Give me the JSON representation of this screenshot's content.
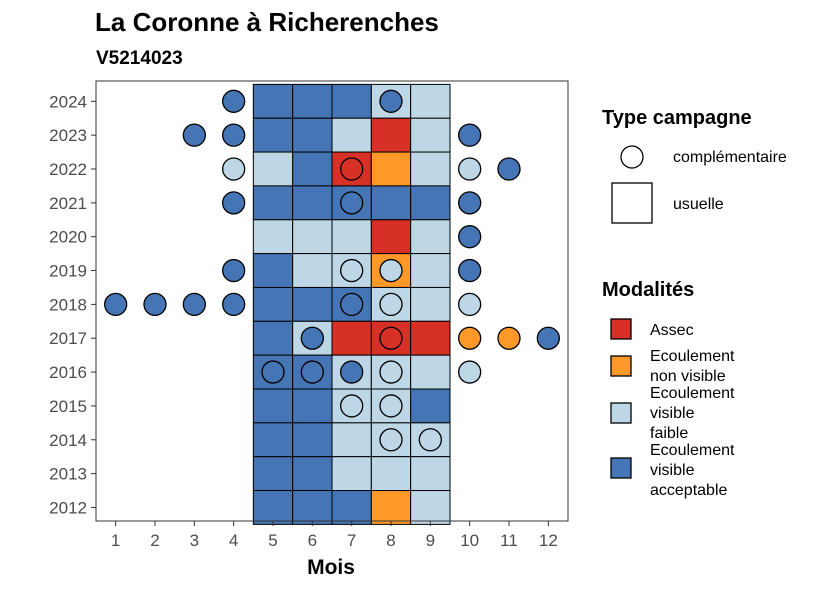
{
  "chart_data": {
    "type": "heatmap",
    "title": "La Coronne à Richerenches",
    "subtitle": "V5214023",
    "xlabel": "Mois",
    "ylabel": "",
    "x_ticks": [
      "1",
      "2",
      "3",
      "4",
      "5",
      "6",
      "7",
      "8",
      "9",
      "10",
      "11",
      "12"
    ],
    "y_ticks": [
      "2012",
      "2013",
      "2014",
      "2015",
      "2016",
      "2017",
      "2018",
      "2019",
      "2020",
      "2021",
      "2022",
      "2023",
      "2024"
    ],
    "xlim": [
      0.5,
      12.5
    ],
    "ylim": [
      2011.6,
      2024.6
    ],
    "grid": false,
    "legend_placement": "right",
    "colors": {
      "assec": "#d73027",
      "ecoulement_non_visible": "#fe9929",
      "ecoulement_visible_faible": "#bdd7e7",
      "ecoulement_visible_acceptable": "#4575b4"
    },
    "modality_legend": {
      "title": "Modalités",
      "entries": [
        {
          "key": "assec",
          "lines": [
            "Assec"
          ]
        },
        {
          "key": "ecoulement_non_visible",
          "lines": [
            "Ecoulement",
            "non visible"
          ]
        },
        {
          "key": "ecoulement_visible_faible",
          "lines": [
            "Ecoulement",
            "visible",
            "faible"
          ]
        },
        {
          "key": "ecoulement_visible_acceptable",
          "lines": [
            "Ecoulement",
            "visible",
            "acceptable"
          ]
        }
      ]
    },
    "campaign_legend": {
      "title": "Type campagne",
      "entries": [
        {
          "shape": "circle",
          "label": "complémentaire"
        },
        {
          "shape": "square",
          "label": "usuelle"
        }
      ]
    },
    "usuelle": [
      {
        "year": 2024,
        "months": {
          "5": "ecoulement_visible_acceptable",
          "6": "ecoulement_visible_acceptable",
          "7": "ecoulement_visible_acceptable",
          "8": "ecoulement_visible_faible",
          "9": "ecoulement_visible_faible"
        }
      },
      {
        "year": 2023,
        "months": {
          "5": "ecoulement_visible_acceptable",
          "6": "ecoulement_visible_acceptable",
          "7": "ecoulement_visible_faible",
          "8": "assec",
          "9": "ecoulement_visible_faible"
        }
      },
      {
        "year": 2022,
        "months": {
          "5": "ecoulement_visible_faible",
          "6": "ecoulement_visible_acceptable",
          "7": "assec",
          "8": "ecoulement_non_visible",
          "9": "ecoulement_visible_faible"
        }
      },
      {
        "year": 2021,
        "months": {
          "5": "ecoulement_visible_acceptable",
          "6": "ecoulement_visible_acceptable",
          "7": "ecoulement_visible_acceptable",
          "8": "ecoulement_visible_acceptable",
          "9": "ecoulement_visible_acceptable"
        }
      },
      {
        "year": 2020,
        "months": {
          "5": "ecoulement_visible_faible",
          "6": "ecoulement_visible_faible",
          "7": "ecoulement_visible_faible",
          "8": "assec",
          "9": "ecoulement_visible_faible"
        }
      },
      {
        "year": 2019,
        "months": {
          "5": "ecoulement_visible_acceptable",
          "6": "ecoulement_visible_faible",
          "7": "ecoulement_visible_faible",
          "8": "ecoulement_non_visible",
          "9": "ecoulement_visible_faible"
        }
      },
      {
        "year": 2018,
        "months": {
          "5": "ecoulement_visible_acceptable",
          "6": "ecoulement_visible_acceptable",
          "7": "ecoulement_visible_acceptable",
          "8": "ecoulement_visible_faible",
          "9": "ecoulement_visible_faible"
        }
      },
      {
        "year": 2017,
        "months": {
          "5": "ecoulement_visible_acceptable",
          "6": "ecoulement_visible_faible",
          "7": "assec",
          "8": "assec",
          "9": "assec"
        }
      },
      {
        "year": 2016,
        "months": {
          "5": "ecoulement_visible_acceptable",
          "6": "ecoulement_visible_acceptable",
          "7": "ecoulement_visible_faible",
          "8": "ecoulement_visible_faible",
          "9": "ecoulement_visible_faible"
        }
      },
      {
        "year": 2015,
        "months": {
          "5": "ecoulement_visible_acceptable",
          "6": "ecoulement_visible_acceptable",
          "7": "ecoulement_visible_faible",
          "8": "ecoulement_visible_faible",
          "9": "ecoulement_visible_acceptable"
        }
      },
      {
        "year": 2014,
        "months": {
          "5": "ecoulement_visible_acceptable",
          "6": "ecoulement_visible_acceptable",
          "7": "ecoulement_visible_faible",
          "8": "ecoulement_visible_faible",
          "9": "ecoulement_visible_faible"
        }
      },
      {
        "year": 2013,
        "months": {
          "5": "ecoulement_visible_acceptable",
          "6": "ecoulement_visible_acceptable",
          "7": "ecoulement_visible_faible",
          "8": "ecoulement_visible_faible",
          "9": "ecoulement_visible_faible"
        }
      },
      {
        "year": 2012,
        "months": {
          "5": "ecoulement_visible_acceptable",
          "6": "ecoulement_visible_acceptable",
          "7": "ecoulement_visible_acceptable",
          "8": "ecoulement_non_visible",
          "9": "ecoulement_visible_faible"
        }
      }
    ],
    "complementaire": [
      {
        "year": 2024,
        "month": 4,
        "modality": "ecoulement_visible_acceptable"
      },
      {
        "year": 2024,
        "month": 8,
        "modality": "ecoulement_visible_acceptable"
      },
      {
        "year": 2023,
        "month": 3,
        "modality": "ecoulement_visible_acceptable"
      },
      {
        "year": 2023,
        "month": 4,
        "modality": "ecoulement_visible_acceptable"
      },
      {
        "year": 2023,
        "month": 10,
        "modality": "ecoulement_visible_acceptable"
      },
      {
        "year": 2022,
        "month": 4,
        "modality": "ecoulement_visible_faible"
      },
      {
        "year": 2022,
        "month": 7,
        "modality": "assec"
      },
      {
        "year": 2022,
        "month": 10,
        "modality": "ecoulement_visible_faible"
      },
      {
        "year": 2022,
        "month": 11,
        "modality": "ecoulement_visible_acceptable"
      },
      {
        "year": 2021,
        "month": 4,
        "modality": "ecoulement_visible_acceptable"
      },
      {
        "year": 2021,
        "month": 7,
        "modality": "ecoulement_visible_acceptable"
      },
      {
        "year": 2021,
        "month": 10,
        "modality": "ecoulement_visible_acceptable"
      },
      {
        "year": 2020,
        "month": 10,
        "modality": "ecoulement_visible_acceptable"
      },
      {
        "year": 2019,
        "month": 4,
        "modality": "ecoulement_visible_acceptable"
      },
      {
        "year": 2019,
        "month": 7,
        "modality": "ecoulement_visible_faible"
      },
      {
        "year": 2019,
        "month": 8,
        "modality": "ecoulement_visible_faible"
      },
      {
        "year": 2019,
        "month": 10,
        "modality": "ecoulement_visible_acceptable"
      },
      {
        "year": 2018,
        "month": 1,
        "modality": "ecoulement_visible_acceptable"
      },
      {
        "year": 2018,
        "month": 2,
        "modality": "ecoulement_visible_acceptable"
      },
      {
        "year": 2018,
        "month": 3,
        "modality": "ecoulement_visible_acceptable"
      },
      {
        "year": 2018,
        "month": 4,
        "modality": "ecoulement_visible_acceptable"
      },
      {
        "year": 2018,
        "month": 7,
        "modality": "ecoulement_visible_acceptable"
      },
      {
        "year": 2018,
        "month": 8,
        "modality": "ecoulement_visible_faible"
      },
      {
        "year": 2018,
        "month": 10,
        "modality": "ecoulement_visible_faible"
      },
      {
        "year": 2017,
        "month": 6,
        "modality": "ecoulement_visible_acceptable"
      },
      {
        "year": 2017,
        "month": 8,
        "modality": "assec"
      },
      {
        "year": 2017,
        "month": 10,
        "modality": "ecoulement_non_visible"
      },
      {
        "year": 2017,
        "month": 11,
        "modality": "ecoulement_non_visible"
      },
      {
        "year": 2017,
        "month": 12,
        "modality": "ecoulement_visible_acceptable"
      },
      {
        "year": 2016,
        "month": 5,
        "modality": "ecoulement_visible_acceptable"
      },
      {
        "year": 2016,
        "month": 6,
        "modality": "ecoulement_visible_acceptable"
      },
      {
        "year": 2016,
        "month": 7,
        "modality": "ecoulement_visible_acceptable"
      },
      {
        "year": 2016,
        "month": 8,
        "modality": "ecoulement_visible_faible"
      },
      {
        "year": 2016,
        "month": 10,
        "modality": "ecoulement_visible_faible"
      },
      {
        "year": 2015,
        "month": 7,
        "modality": "ecoulement_visible_faible"
      },
      {
        "year": 2015,
        "month": 8,
        "modality": "ecoulement_visible_faible"
      },
      {
        "year": 2014,
        "month": 8,
        "modality": "ecoulement_visible_faible"
      },
      {
        "year": 2014,
        "month": 9,
        "modality": "ecoulement_visible_faible"
      }
    ]
  }
}
